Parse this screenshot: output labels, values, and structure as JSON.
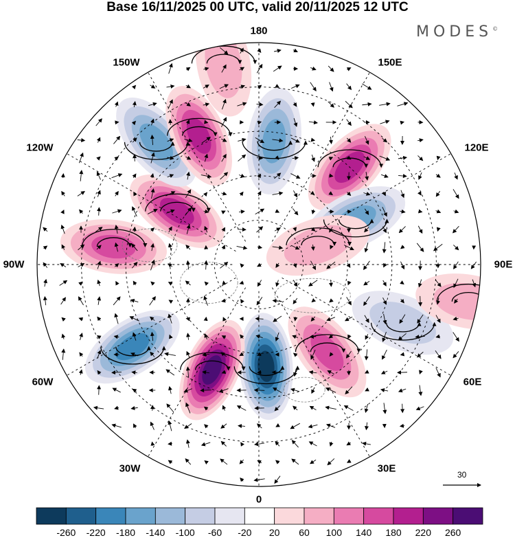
{
  "title": "Base 16/11/2025 00 UTC, valid 20/11/2025 12 UTC",
  "brand": {
    "text": "MODES",
    "reg_mark": "©"
  },
  "longitude_labels": {
    "lon_180": "180",
    "lon_150E": "150E",
    "lon_120E": "120E",
    "lon_90E": "90E",
    "lon_60E": "60E",
    "lon_30E": "30E",
    "lon_0": "0",
    "lon_30W": "30W",
    "lon_60W": "60W",
    "lon_90W": "90W",
    "lon_120W": "120W",
    "lon_150W": "150W"
  },
  "reference_vector": {
    "value": "30",
    "icon": "arrow-right-icon"
  },
  "colorbar": {
    "ticks": [
      "-260",
      "-220",
      "-180",
      "-140",
      "-100",
      "-60",
      "-20",
      "20",
      "60",
      "100",
      "140",
      "180",
      "220",
      "260"
    ],
    "colors": [
      "#0d3a5c",
      "#1f5f8d",
      "#3a86b9",
      "#6aa3cc",
      "#9bb9d9",
      "#c5cde4",
      "#e6e6f1",
      "#ffffff",
      "#fbd9dc",
      "#f5aec4",
      "#ea7cb2",
      "#d64a9f",
      "#b31f8f",
      "#7d0f84",
      "#4b0d74"
    ]
  },
  "anomaly_cells": [
    {
      "lon": 173,
      "colat": 28,
      "value": -140
    },
    {
      "lon": 137,
      "colat": 30,
      "value": 200
    },
    {
      "lon": 115,
      "colat": 24,
      "value": -140
    },
    {
      "lon": 108,
      "colat": 14,
      "value": 60
    },
    {
      "lon": 68,
      "colat": 35,
      "value": -60
    },
    {
      "lon": 38,
      "colat": 25,
      "value": 140
    },
    {
      "lon": 4,
      "colat": 23,
      "value": -260
    },
    {
      "lon": -24,
      "colat": 26,
      "value": 270
    },
    {
      "lon": -57,
      "colat": 34,
      "value": -180
    },
    {
      "lon": -97,
      "colat": 33,
      "value": 160
    },
    {
      "lon": -123,
      "colat": 22,
      "value": 200
    },
    {
      "lon": -140,
      "colat": 36,
      "value": -160
    },
    {
      "lon": -155,
      "colat": 32,
      "value": 200
    },
    {
      "lon": 80,
      "colat": 48,
      "value": 60
    },
    {
      "lon": -170,
      "colat": 46,
      "value": 60
    }
  ],
  "wind_field_seed": 17
}
